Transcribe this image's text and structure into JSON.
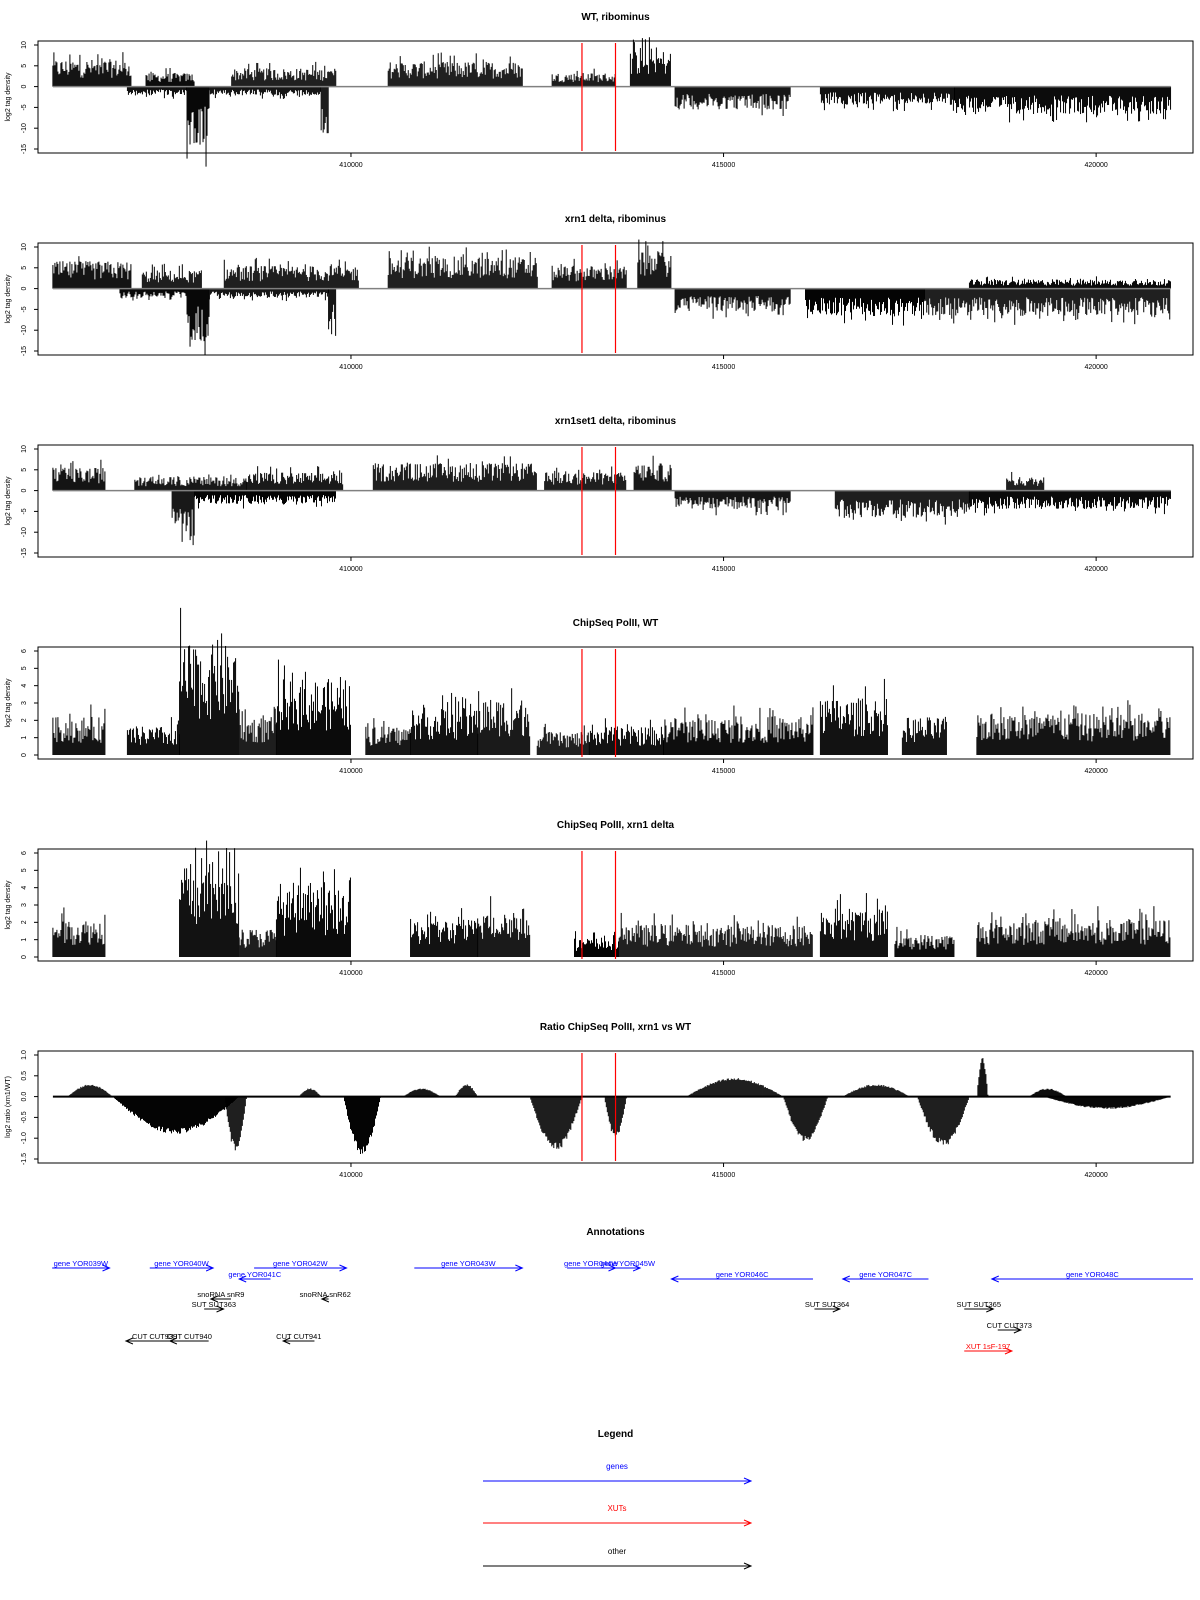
{
  "chart_data": [
    {
      "type": "area",
      "title": "WT, ribominus",
      "ylabel": "log2 tag density",
      "ylim": [
        -15,
        10
      ],
      "yticks": [
        "-15",
        "-10",
        "-5",
        "0",
        "5",
        "10"
      ],
      "xlim": [
        405800,
        421300
      ],
      "xticks": [
        "410000",
        "415000",
        "420000"
      ],
      "markers": [
        413100,
        413550
      ],
      "segments_plus": [
        {
          "from": 406000,
          "to": 407050,
          "level": 6
        },
        {
          "from": 407250,
          "to": 407900,
          "level": 3
        },
        {
          "from": 408400,
          "to": 409800,
          "level": 4
        },
        {
          "from": 410500,
          "to": 412300,
          "level": 5.5
        },
        {
          "from": 412700,
          "to": 413550,
          "level": 3
        },
        {
          "from": 413750,
          "to": 414300,
          "level": 8
        }
      ],
      "segments_minus": [
        {
          "from": 407000,
          "to": 407800,
          "level": 2
        },
        {
          "from": 407800,
          "to": 408100,
          "level": 13
        },
        {
          "from": 408100,
          "to": 409600,
          "level": 2
        },
        {
          "from": 409600,
          "to": 409700,
          "level": 12
        },
        {
          "from": 414350,
          "to": 415900,
          "level": 5
        },
        {
          "from": 416300,
          "to": 418100,
          "level": 4
        },
        {
          "from": 418100,
          "to": 421000,
          "level": 6
        }
      ]
    },
    {
      "type": "area",
      "title": "xrn1 delta, ribominus",
      "ylabel": "log2 tag density",
      "ylim": [
        -15,
        10
      ],
      "yticks": [
        "-15",
        "-10",
        "-5",
        "0",
        "5",
        "10"
      ],
      "xlim": [
        405800,
        421300
      ],
      "xticks": [
        "410000",
        "415000",
        "420000"
      ],
      "markers": [
        413100,
        413550
      ],
      "segments_plus": [
        {
          "from": 406000,
          "to": 407050,
          "level": 6
        },
        {
          "from": 407200,
          "to": 408000,
          "level": 4
        },
        {
          "from": 408300,
          "to": 410100,
          "level": 5
        },
        {
          "from": 410500,
          "to": 412500,
          "level": 7
        },
        {
          "from": 412700,
          "to": 413700,
          "level": 5
        },
        {
          "from": 413850,
          "to": 414300,
          "level": 8
        },
        {
          "from": 418300,
          "to": 421000,
          "level": 2
        }
      ],
      "segments_minus": [
        {
          "from": 406900,
          "to": 407800,
          "level": 2
        },
        {
          "from": 407800,
          "to": 408100,
          "level": 12
        },
        {
          "from": 408100,
          "to": 409700,
          "level": 2
        },
        {
          "from": 409700,
          "to": 409800,
          "level": 11
        },
        {
          "from": 414350,
          "to": 415900,
          "level": 5
        },
        {
          "from": 416100,
          "to": 417700,
          "level": 6
        },
        {
          "from": 417700,
          "to": 421000,
          "level": 6
        }
      ]
    },
    {
      "type": "area",
      "title": "xrn1set1 delta, ribominus",
      "ylabel": "log2 tag density",
      "ylim": [
        -15,
        10
      ],
      "yticks": [
        "-15",
        "-10",
        "-5",
        "0",
        "5",
        "10"
      ],
      "xlim": [
        405800,
        421300
      ],
      "xticks": [
        "410000",
        "415000",
        "420000"
      ],
      "markers": [
        413100,
        413550
      ],
      "segments_plus": [
        {
          "from": 406000,
          "to": 406700,
          "level": 5
        },
        {
          "from": 407100,
          "to": 408600,
          "level": 3
        },
        {
          "from": 408600,
          "to": 409900,
          "level": 4
        },
        {
          "from": 410300,
          "to": 412500,
          "level": 6
        },
        {
          "from": 412600,
          "to": 413700,
          "level": 4
        },
        {
          "from": 413800,
          "to": 414300,
          "level": 6
        },
        {
          "from": 418800,
          "to": 419300,
          "level": 3
        }
      ],
      "segments_minus": [
        {
          "from": 407600,
          "to": 407900,
          "level": 12
        },
        {
          "from": 407900,
          "to": 409800,
          "level": 3
        },
        {
          "from": 414350,
          "to": 415900,
          "level": 4
        },
        {
          "from": 416500,
          "to": 418300,
          "level": 6
        },
        {
          "from": 418300,
          "to": 421000,
          "level": 4
        }
      ]
    },
    {
      "type": "area",
      "title": "ChipSeq PolII, WT",
      "ylabel": "log2 tag density",
      "ylim": [
        0,
        6
      ],
      "yticks": [
        "0",
        "1",
        "2",
        "3",
        "4",
        "5",
        "6"
      ],
      "xlim": [
        405800,
        421300
      ],
      "xticks": [
        "410000",
        "415000",
        "420000"
      ],
      "markers": [
        413100,
        413550
      ],
      "segments_plus": [
        {
          "from": 406000,
          "to": 406700,
          "level": 2
        },
        {
          "from": 407000,
          "to": 407700,
          "level": 1.5
        },
        {
          "from": 407700,
          "to": 408500,
          "level": 5.8
        },
        {
          "from": 408500,
          "to": 409000,
          "level": 2
        },
        {
          "from": 409000,
          "to": 410000,
          "level": 4
        },
        {
          "from": 410200,
          "to": 410800,
          "level": 1.5
        },
        {
          "from": 410800,
          "to": 411700,
          "level": 2.5
        },
        {
          "from": 411700,
          "to": 412400,
          "level": 3
        },
        {
          "from": 412500,
          "to": 413200,
          "level": 1.2
        },
        {
          "from": 413200,
          "to": 414200,
          "level": 1.5
        },
        {
          "from": 414200,
          "to": 416200,
          "level": 2
        },
        {
          "from": 416300,
          "to": 417200,
          "level": 3
        },
        {
          "from": 417400,
          "to": 418000,
          "level": 2
        },
        {
          "from": 418400,
          "to": 421000,
          "level": 2.2
        }
      ],
      "segments_minus": []
    },
    {
      "type": "area",
      "title": "ChipSeq PolII, xrn1 delta",
      "ylabel": "log2 tag density",
      "ylim": [
        0,
        6
      ],
      "yticks": [
        "0",
        "1",
        "2",
        "3",
        "4",
        "5",
        "6"
      ],
      "xlim": [
        405800,
        421300
      ],
      "xticks": [
        "410000",
        "415000",
        "420000"
      ],
      "markers": [
        413100,
        413550
      ],
      "segments_plus": [
        {
          "from": 406000,
          "to": 406700,
          "level": 2
        },
        {
          "from": 407700,
          "to": 408500,
          "level": 5
        },
        {
          "from": 408500,
          "to": 409000,
          "level": 1.5
        },
        {
          "from": 409000,
          "to": 410000,
          "level": 3.5
        },
        {
          "from": 410800,
          "to": 411700,
          "level": 2
        },
        {
          "from": 411700,
          "to": 412400,
          "level": 2.6
        },
        {
          "from": 413000,
          "to": 413600,
          "level": 1
        },
        {
          "from": 413600,
          "to": 416200,
          "level": 1.7
        },
        {
          "from": 416300,
          "to": 417200,
          "level": 2.6
        },
        {
          "from": 417300,
          "to": 418100,
          "level": 1.2
        },
        {
          "from": 418400,
          "to": 421000,
          "level": 2
        }
      ],
      "segments_minus": []
    },
    {
      "type": "area",
      "title": "Ratio ChipSeq PolII, xrn1 vs WT",
      "ylabel": "log2 ratio (xrn1/WT)",
      "ylim": [
        -1.5,
        1.0
      ],
      "yticks": [
        "-1.5",
        "-1.0",
        "-0.5",
        "0.0",
        "0.5",
        "1.0"
      ],
      "xlim": [
        405800,
        421300
      ],
      "xticks": [
        "410000",
        "415000",
        "420000"
      ],
      "markers": [
        413100,
        413550
      ],
      "segments_plus": [
        {
          "from": 406200,
          "to": 406800,
          "level": 0.3
        },
        {
          "from": 409300,
          "to": 409600,
          "level": 0.2
        },
        {
          "from": 410700,
          "to": 411200,
          "level": 0.2
        },
        {
          "from": 411400,
          "to": 411700,
          "level": 0.3
        },
        {
          "from": 414500,
          "to": 415800,
          "level": 0.45
        },
        {
          "from": 416600,
          "to": 417500,
          "level": 0.3
        },
        {
          "from": 418400,
          "to": 418550,
          "level": 1.0
        },
        {
          "from": 419100,
          "to": 419600,
          "level": 0.2
        }
      ],
      "segments_minus": [
        {
          "from": 406800,
          "to": 408500,
          "level": 0.9
        },
        {
          "from": 408300,
          "to": 408600,
          "level": 1.3
        },
        {
          "from": 409900,
          "to": 410400,
          "level": 1.4
        },
        {
          "from": 412400,
          "to": 413100,
          "level": 1.3
        },
        {
          "from": 413400,
          "to": 413700,
          "level": 1.0
        },
        {
          "from": 415800,
          "to": 416400,
          "level": 1.1
        },
        {
          "from": 417600,
          "to": 418300,
          "level": 1.2
        },
        {
          "from": 419300,
          "to": 421000,
          "level": 0.3
        }
      ]
    }
  ],
  "annotations": {
    "title": "Annotations",
    "items": [
      {
        "label": "gene YOR039W",
        "from": 405990,
        "to": 406760,
        "row": 0,
        "kind": "gene",
        "dir": "right"
      },
      {
        "label": "gene YOR040W",
        "from": 407300,
        "to": 408150,
        "row": 0,
        "kind": "gene",
        "dir": "right"
      },
      {
        "label": "gene YOR042W",
        "from": 408700,
        "to": 409940,
        "row": 0,
        "kind": "gene",
        "dir": "right"
      },
      {
        "label": "gene YOR041C",
        "from": 408500,
        "to": 408920,
        "row": 1,
        "kind": "gene",
        "dir": "left"
      },
      {
        "label": "gene YOR043W",
        "from": 410850,
        "to": 412300,
        "row": 0,
        "kind": "gene",
        "dir": "right"
      },
      {
        "label": "gene YOR044W",
        "from": 412900,
        "to": 413550,
        "row": 0,
        "kind": "gene",
        "dir": "right"
      },
      {
        "label": "gene YOR045W",
        "from": 413550,
        "to": 413880,
        "row": 0,
        "kind": "gene",
        "dir": "right"
      },
      {
        "label": "gene YOR046C",
        "from": 414300,
        "to": 416200,
        "row": 1,
        "kind": "gene",
        "dir": "left"
      },
      {
        "label": "gene YOR047C",
        "from": 416600,
        "to": 417750,
        "row": 1,
        "kind": "gene",
        "dir": "left"
      },
      {
        "label": "gene YOR048C",
        "from": 418600,
        "to": 421300,
        "row": 1,
        "kind": "gene",
        "dir": "left"
      },
      {
        "label": "snoRNA snR9",
        "from": 408120,
        "to": 408390,
        "row": 2,
        "kind": "other",
        "dir": "left"
      },
      {
        "label": "snoRNA snR62",
        "from": 409610,
        "to": 409700,
        "row": 2,
        "kind": "other",
        "dir": "left"
      },
      {
        "label": "SUT SUT363",
        "from": 408030,
        "to": 408290,
        "row": 3,
        "kind": "other",
        "dir": "right"
      },
      {
        "label": "SUT SUT364",
        "from": 416220,
        "to": 416560,
        "row": 3,
        "kind": "other",
        "dir": "right"
      },
      {
        "label": "SUT SUT365",
        "from": 418230,
        "to": 418620,
        "row": 3,
        "kind": "other",
        "dir": "right"
      },
      {
        "label": "CUT CUT373",
        "from": 418680,
        "to": 418990,
        "row": 4,
        "kind": "other",
        "dir": "right"
      },
      {
        "label": "CUT CUT939",
        "from": 406980,
        "to": 407750,
        "row": 5,
        "kind": "other",
        "dir": "left"
      },
      {
        "label": "CUT CUT940",
        "from": 407570,
        "to": 408090,
        "row": 5,
        "kind": "other",
        "dir": "left"
      },
      {
        "label": "CUT CUT941",
        "from": 409090,
        "to": 409510,
        "row": 5,
        "kind": "other",
        "dir": "left"
      },
      {
        "label": "XUT 1sF-197",
        "from": 418230,
        "to": 418870,
        "row": 6,
        "kind": "xut",
        "dir": "right"
      }
    ]
  },
  "legend": {
    "title": "Legend",
    "items": [
      {
        "label": "genes",
        "kind": "gene"
      },
      {
        "label": "XUTs",
        "kind": "xut"
      },
      {
        "label": "other",
        "kind": "other"
      }
    ]
  },
  "colors": {
    "gene": "#0000ff",
    "xut": "#ff0000",
    "other": "#000000",
    "marker": "#ff0000",
    "baseline": "#808080",
    "bars": "#000000"
  }
}
